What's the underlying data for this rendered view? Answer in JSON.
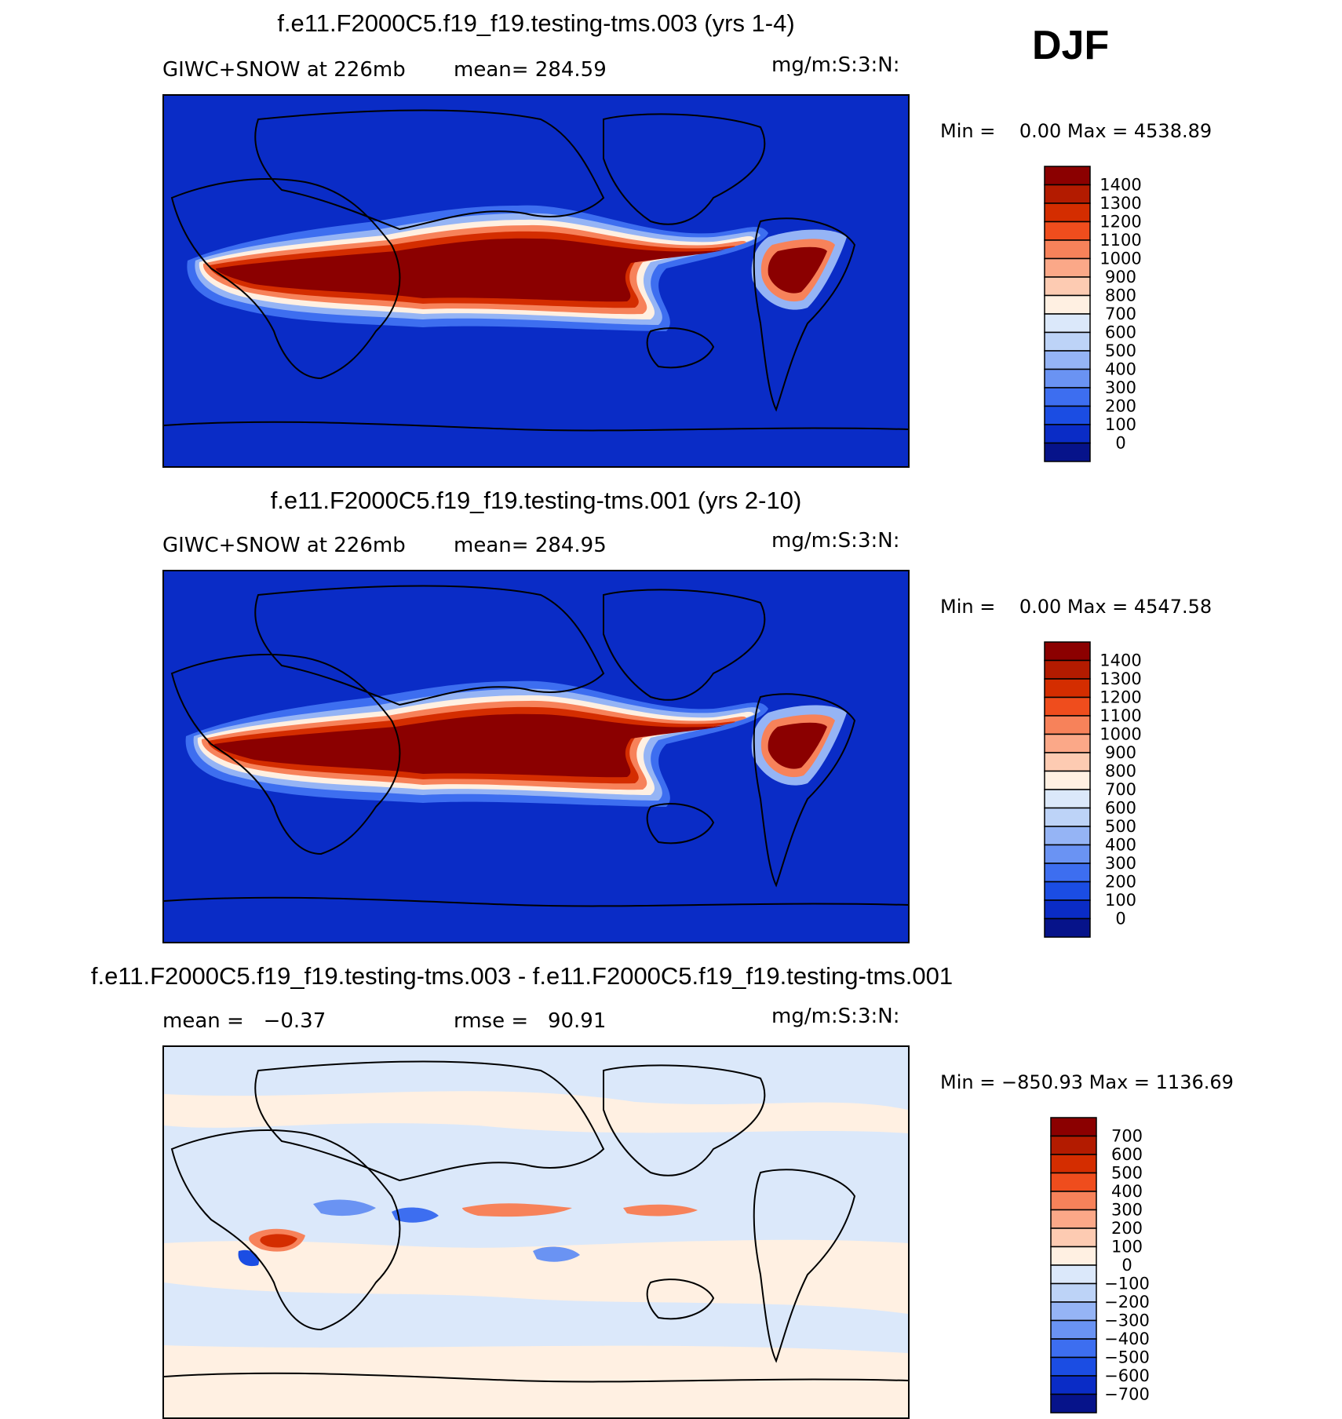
{
  "season": "DJF",
  "panels": [
    {
      "title": "f.e11.F2000C5.f19_f19.testing-tms.003 (yrs 1-4)",
      "left_label": "GIWC+SNOW at 226mb",
      "stat_label": "mean= 284.59",
      "units": "mg/m:S:3:N:",
      "minmax": "Min =    0.00 Max = 4538.89",
      "colorbar": {
        "labels": [
          "1400",
          "1300",
          "1200",
          "1100",
          "1000",
          "900",
          "800",
          "700",
          "600",
          "500",
          "400",
          "300",
          "200",
          "100",
          "0"
        ],
        "colors": [
          "#8b0000",
          "#b31b00",
          "#d42d00",
          "#ef4d1d",
          "#f7825a",
          "#fba888",
          "#fdcbb2",
          "#fff0e2",
          "#dbe8fa",
          "#bdd3f7",
          "#95b4f5",
          "#6a93f3",
          "#3d6ef0",
          "#1b4de3",
          "#0a2cc6",
          "#06138a"
        ]
      }
    },
    {
      "title": "f.e11.F2000C5.f19_f19.testing-tms.001 (yrs 2-10)",
      "left_label": "GIWC+SNOW at 226mb",
      "stat_label": "mean= 284.95",
      "units": "mg/m:S:3:N:",
      "minmax": "Min =    0.00 Max = 4547.58",
      "colorbar": {
        "labels": [
          "1400",
          "1300",
          "1200",
          "1100",
          "1000",
          "900",
          "800",
          "700",
          "600",
          "500",
          "400",
          "300",
          "200",
          "100",
          "0"
        ],
        "colors": [
          "#8b0000",
          "#b31b00",
          "#d42d00",
          "#ef4d1d",
          "#f7825a",
          "#fba888",
          "#fdcbb2",
          "#fff0e2",
          "#dbe8fa",
          "#bdd3f7",
          "#95b4f5",
          "#6a93f3",
          "#3d6ef0",
          "#1b4de3",
          "#0a2cc6",
          "#06138a"
        ]
      }
    },
    {
      "title": "f.e11.F2000C5.f19_f19.testing-tms.003 - f.e11.F2000C5.f19_f19.testing-tms.001",
      "left_label": "mean =   −0.37",
      "stat_label": "rmse =   90.91",
      "units": "mg/m:S:3:N:",
      "minmax": "Min = −850.93 Max = 1136.69",
      "colorbar": {
        "labels": [
          "700",
          "600",
          "500",
          "400",
          "300",
          "200",
          "100",
          "0",
          "−100",
          "−200",
          "−300",
          "−400",
          "−500",
          "−600",
          "−700"
        ],
        "colors": [
          "#8b0000",
          "#b31b00",
          "#d42d00",
          "#ef4d1d",
          "#f7825a",
          "#fba888",
          "#fdcbb2",
          "#fff0e2",
          "#dbe8fa",
          "#bdd3f7",
          "#95b4f5",
          "#6a93f3",
          "#3d6ef0",
          "#1b4de3",
          "#0a2cc6",
          "#06138a"
        ]
      }
    }
  ],
  "chart_data": [
    {
      "type": "heatmap",
      "title": "f.e11.F2000C5.f19_f19.testing-tms.003 (yrs 1-4)",
      "variable": "GIWC+SNOW at 226mb",
      "units": "mg/m:S:3:N:",
      "mean": 284.59,
      "min": 0.0,
      "max": 4538.89,
      "contour_levels": [
        0,
        100,
        200,
        300,
        400,
        500,
        600,
        700,
        800,
        900,
        1000,
        1100,
        1200,
        1300,
        1400
      ]
    },
    {
      "type": "heatmap",
      "title": "f.e11.F2000C5.f19_f19.testing-tms.001 (yrs 2-10)",
      "variable": "GIWC+SNOW at 226mb",
      "units": "mg/m:S:3:N:",
      "mean": 284.95,
      "min": 0.0,
      "max": 4547.58,
      "contour_levels": [
        0,
        100,
        200,
        300,
        400,
        500,
        600,
        700,
        800,
        900,
        1000,
        1100,
        1200,
        1300,
        1400
      ]
    },
    {
      "type": "heatmap",
      "title": "f.e11.F2000C5.f19_f19.testing-tms.003 - f.e11.F2000C5.f19_f19.testing-tms.001",
      "units": "mg/m:S:3:N:",
      "mean": -0.37,
      "rmse": 90.91,
      "min": -850.93,
      "max": 1136.69,
      "contour_levels": [
        -700,
        -600,
        -500,
        -400,
        -300,
        -200,
        -100,
        0,
        100,
        200,
        300,
        400,
        500,
        600,
        700
      ]
    }
  ]
}
